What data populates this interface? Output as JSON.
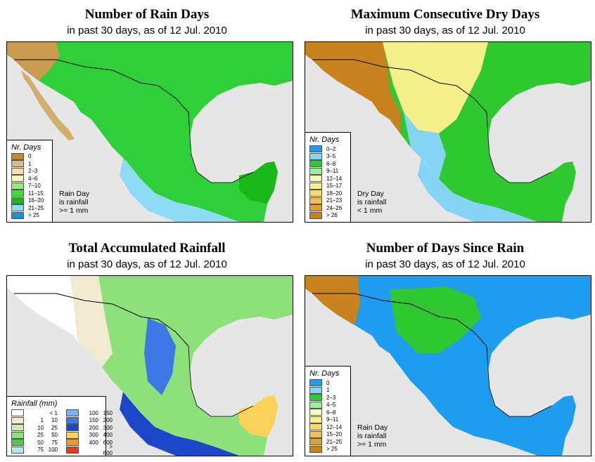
{
  "panels": [
    {
      "id": "rain-days",
      "title": "Number of Rain Days",
      "subtitle": "in past 30 days, as of  12 Jul. 2010",
      "legend_title": "Nr. Days",
      "legend": [
        {
          "label": "0",
          "color": "#c28a2e"
        },
        {
          "label": "1",
          "color": "#d8b987"
        },
        {
          "label": "2–3",
          "color": "#f0ddb2"
        },
        {
          "label": "4–6",
          "color": "#faf6b6"
        },
        {
          "label": "7–10",
          "color": "#90ee78"
        },
        {
          "label": "11–15",
          "color": "#3cdd3c"
        },
        {
          "label": "16–20",
          "color": "#18b818"
        },
        {
          "label": "21–25",
          "color": "#8cdcf5"
        },
        {
          "label": "> 25",
          "color": "#1e90d8"
        }
      ],
      "note": [
        "Rain Day",
        "is rainfall",
        ">= 1 mm"
      ]
    },
    {
      "id": "dry-days",
      "title": "Maximum Consecutive Dry Days",
      "subtitle": "in past 30 days, as of  12 Jul. 2010",
      "legend_title": "Nr. Days",
      "legend": [
        {
          "label": "0–2",
          "color": "#1e9cf0"
        },
        {
          "label": "3–5",
          "color": "#86d4f5"
        },
        {
          "label": "6–8",
          "color": "#30c830"
        },
        {
          "label": "9–11",
          "color": "#9aef9a"
        },
        {
          "label": "12–14",
          "color": "#fafac0"
        },
        {
          "label": "15–17",
          "color": "#f6f08a"
        },
        {
          "label": "18–20",
          "color": "#fadc6e"
        },
        {
          "label": "21–23",
          "color": "#f0c04a"
        },
        {
          "label": "24–26",
          "color": "#e0a030"
        },
        {
          "label": "> 26",
          "color": "#c8821e"
        }
      ],
      "note": [
        "Dry Day",
        "is rainfall",
        "< 1 mm"
      ]
    },
    {
      "id": "total-rainfall",
      "title": "Total Accumulated Rainfall",
      "subtitle": "in past 30 days, as of  12 Jul. 2010",
      "legend_title": "Rainfall (mm)",
      "legend_cols": [
        [
          {
            "a": "",
            "b": "< 1",
            "color": "#ffffff"
          },
          {
            "a": "1",
            "b": "10",
            "color": "#f2ead0"
          },
          {
            "a": "10",
            "b": "25",
            "color": "#c8f0b4"
          },
          {
            "a": "25",
            "b": "50",
            "color": "#8ee07a"
          },
          {
            "a": "50",
            "b": "75",
            "color": "#50c850"
          },
          {
            "a": "75",
            "b": "100",
            "color": "#b4e6f5"
          }
        ],
        [
          {
            "a": "100",
            "b": "150",
            "color": "#78b4f0"
          },
          {
            "a": "150",
            "b": "200",
            "color": "#3c78e6"
          },
          {
            "a": "200",
            "b": "300",
            "color": "#1e46c8"
          },
          {
            "a": "300",
            "b": "400",
            "color": "#fad25a"
          },
          {
            "a": "400",
            "b": "600",
            "color": "#f59628"
          },
          {
            "a": "",
            "b": "> 600",
            "color": "#e63c1e"
          }
        ]
      ]
    },
    {
      "id": "days-since-rain",
      "title": "Number of Days Since Rain",
      "subtitle": "in past 30 days, as of  12 Jul. 2010",
      "legend_title": "Nr. Days",
      "legend": [
        {
          "label": "0",
          "color": "#1e9cf0"
        },
        {
          "label": "1",
          "color": "#86d4f5"
        },
        {
          "label": "2–3",
          "color": "#30c830"
        },
        {
          "label": "4–5",
          "color": "#9aef9a"
        },
        {
          "label": "6–8",
          "color": "#fafac0"
        },
        {
          "label": "9–11",
          "color": "#f6f08a"
        },
        {
          "label": "12–14",
          "color": "#fadc6e"
        },
        {
          "label": "15–20",
          "color": "#f0c04a"
        },
        {
          "label": "21–25",
          "color": "#e0a030"
        },
        {
          "label": "> 25",
          "color": "#c8821e"
        }
      ],
      "note": [
        "Rain Day",
        "is rainfall",
        ">= 1 mm"
      ]
    }
  ]
}
